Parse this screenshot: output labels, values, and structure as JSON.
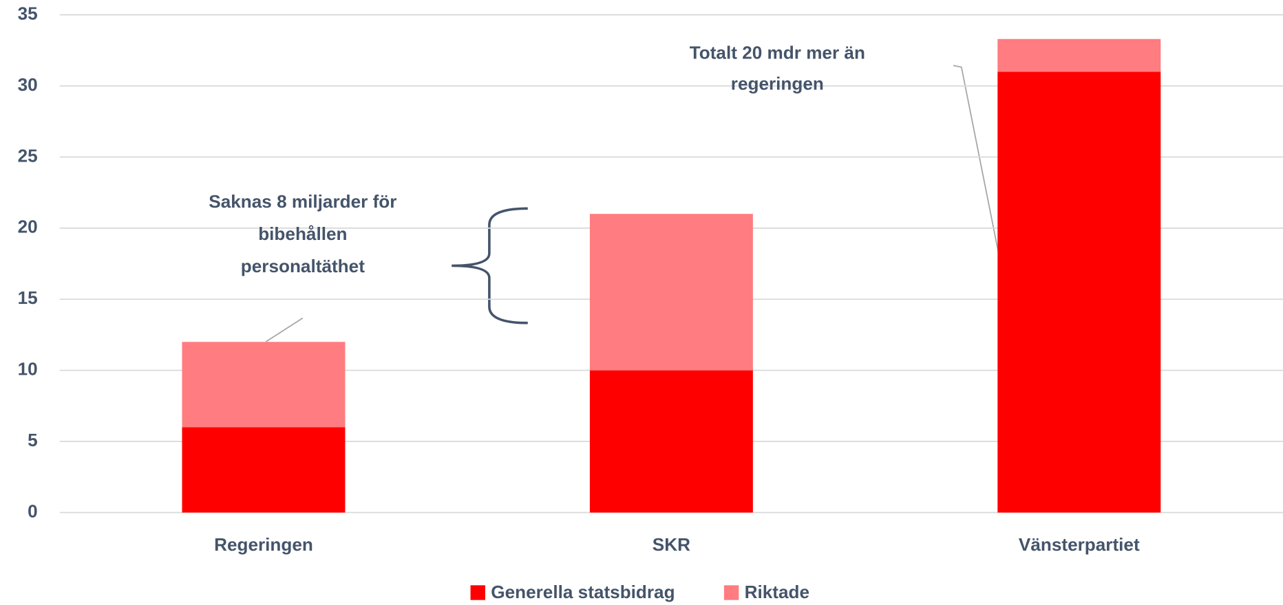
{
  "chart_data": {
    "type": "stacked_bar",
    "categories": [
      "Regeringen",
      "SKR",
      "Vänsterpartiet"
    ],
    "series": [
      {
        "name": "Generella statsbidrag",
        "color": "#ff0000",
        "values": [
          6,
          10,
          31
        ]
      },
      {
        "name": "Riktade",
        "color": "#ff7c80",
        "values": [
          6,
          11,
          2.3
        ]
      }
    ],
    "ylim": [
      0,
      35
    ],
    "yticks": [
      0,
      5,
      10,
      15,
      20,
      25,
      30,
      35
    ],
    "grid": true,
    "legend": "bottom",
    "annotations": [
      {
        "lines": [
          "Saknas 8 miljarder för",
          "bibehållen",
          "personaltäthet"
        ]
      },
      {
        "lines": [
          "Totalt 20 mdr mer än",
          "regeringen"
        ]
      }
    ]
  }
}
